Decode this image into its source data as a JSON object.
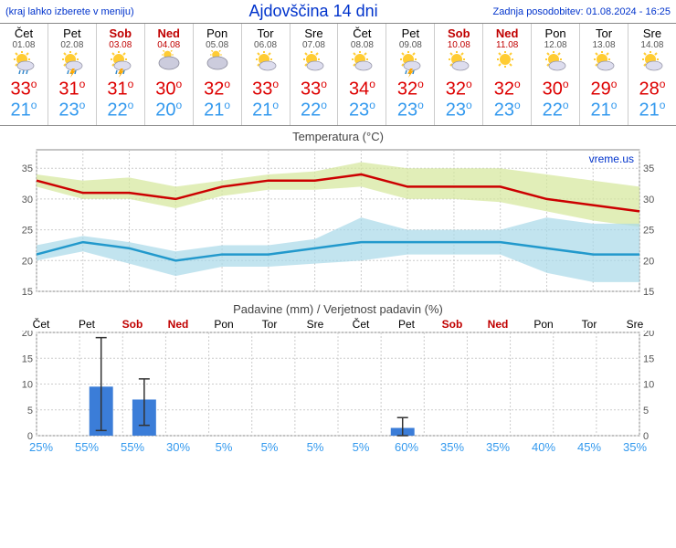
{
  "header": {
    "menu_hint": "(kraj lahko izberete v meniju)",
    "title": "Ajdovščina 14 dni",
    "updated": "Zadnja posodobitev: 01.08.2024 - 16:25"
  },
  "days": [
    {
      "name": "Čet",
      "date": "01.08",
      "weekend": false,
      "hi": 33,
      "lo": 21,
      "icon": "sun-cloud-rain",
      "prob": 25,
      "precip": 0,
      "err_lo": 0,
      "err_hi": 0
    },
    {
      "name": "Pet",
      "date": "02.08",
      "weekend": false,
      "hi": 31,
      "lo": 23,
      "icon": "sun-storm",
      "prob": 55,
      "precip": 9.5,
      "err_lo": 1,
      "err_hi": 19
    },
    {
      "name": "Sob",
      "date": "03.08",
      "weekend": true,
      "hi": 31,
      "lo": 22,
      "icon": "sun-storm",
      "prob": 55,
      "precip": 7,
      "err_lo": 2,
      "err_hi": 11
    },
    {
      "name": "Ned",
      "date": "04.08",
      "weekend": true,
      "hi": 30,
      "lo": 20,
      "icon": "cloud-sun",
      "prob": 30,
      "precip": 0,
      "err_lo": 0,
      "err_hi": 0
    },
    {
      "name": "Pon",
      "date": "05.08",
      "weekend": false,
      "hi": 32,
      "lo": 21,
      "icon": "cloud-sun",
      "prob": 5,
      "precip": 0,
      "err_lo": 0,
      "err_hi": 0
    },
    {
      "name": "Tor",
      "date": "06.08",
      "weekend": false,
      "hi": 33,
      "lo": 21,
      "icon": "sun-small-cloud",
      "prob": 5,
      "precip": 0,
      "err_lo": 0,
      "err_hi": 0
    },
    {
      "name": "Sre",
      "date": "07.08",
      "weekend": false,
      "hi": 33,
      "lo": 22,
      "icon": "sun-small-cloud",
      "prob": 5,
      "precip": 0,
      "err_lo": 0,
      "err_hi": 0
    },
    {
      "name": "Čet",
      "date": "08.08",
      "weekend": false,
      "hi": 34,
      "lo": 23,
      "icon": "sun-small-cloud",
      "prob": 5,
      "precip": 0,
      "err_lo": 0,
      "err_hi": 0
    },
    {
      "name": "Pet",
      "date": "09.08",
      "weekend": false,
      "hi": 32,
      "lo": 23,
      "icon": "sun-storm",
      "prob": 60,
      "precip": 1.5,
      "err_lo": 0,
      "err_hi": 3.5
    },
    {
      "name": "Sob",
      "date": "10.08",
      "weekend": true,
      "hi": 32,
      "lo": 23,
      "icon": "sun-small-cloud",
      "prob": 35,
      "precip": 0,
      "err_lo": 0,
      "err_hi": 0
    },
    {
      "name": "Ned",
      "date": "11.08",
      "weekend": true,
      "hi": 32,
      "lo": 23,
      "icon": "sun",
      "prob": 35,
      "precip": 0,
      "err_lo": 0,
      "err_hi": 0
    },
    {
      "name": "Pon",
      "date": "12.08",
      "weekend": false,
      "hi": 30,
      "lo": 22,
      "icon": "sun-small-cloud",
      "prob": 40,
      "precip": 0,
      "err_lo": 0,
      "err_hi": 0
    },
    {
      "name": "Tor",
      "date": "13.08",
      "weekend": false,
      "hi": 29,
      "lo": 21,
      "icon": "sun-small-cloud",
      "prob": 45,
      "precip": 0,
      "err_lo": 0,
      "err_hi": 0
    },
    {
      "name": "Sre",
      "date": "14.08",
      "weekend": false,
      "hi": 28,
      "lo": 21,
      "icon": "sun-small-cloud",
      "prob": 35,
      "precip": 0,
      "err_lo": 0,
      "err_hi": 0
    }
  ],
  "temp_chart": {
    "title": "Temperatura (°C)",
    "ylim": [
      15,
      38
    ],
    "yticks": [
      15,
      20,
      25,
      30,
      35
    ],
    "watermark": "vreme.us",
    "hi_band_upper": [
      34,
      33,
      33.5,
      32,
      33,
      34,
      34.5,
      36,
      35,
      35,
      35,
      34,
      33,
      32
    ],
    "hi_band_lower": [
      32,
      30,
      30,
      28.5,
      30.5,
      31.5,
      31.5,
      32,
      30,
      30,
      29.5,
      28,
      26.5,
      25.5
    ],
    "hi_line": [
      33,
      31,
      31,
      30,
      32,
      33,
      33,
      34,
      32,
      32,
      32,
      30,
      29,
      28
    ],
    "lo_band_upper": [
      22.5,
      24,
      23,
      21.5,
      22.5,
      22.5,
      23.5,
      27,
      25,
      25,
      25,
      27,
      26,
      26
    ],
    "lo_band_lower": [
      20,
      21.5,
      19.5,
      17.5,
      19,
      19,
      19.5,
      20,
      21,
      21,
      21,
      18,
      16.5,
      16.5
    ],
    "lo_line": [
      21,
      23,
      22,
      20,
      21,
      21,
      22,
      23,
      23,
      23,
      23,
      22,
      21,
      21
    ],
    "colors": {
      "hi_band": "#d4e79a",
      "hi_line": "#cc0000",
      "lo_band": "#a8d8e8",
      "lo_line": "#2299cc",
      "grid": "#cccccc",
      "axis": "#888888",
      "bg": "#ffffff"
    }
  },
  "precip_chart": {
    "title": "Padavine (mm) / Verjetnost padavin (%)",
    "ylim": [
      0,
      20
    ],
    "yticks": [
      0,
      5,
      10,
      15,
      20
    ],
    "bar_color": "#3b7dd8",
    "err_color": "#333333",
    "grid": "#cccccc",
    "axis": "#888888"
  }
}
